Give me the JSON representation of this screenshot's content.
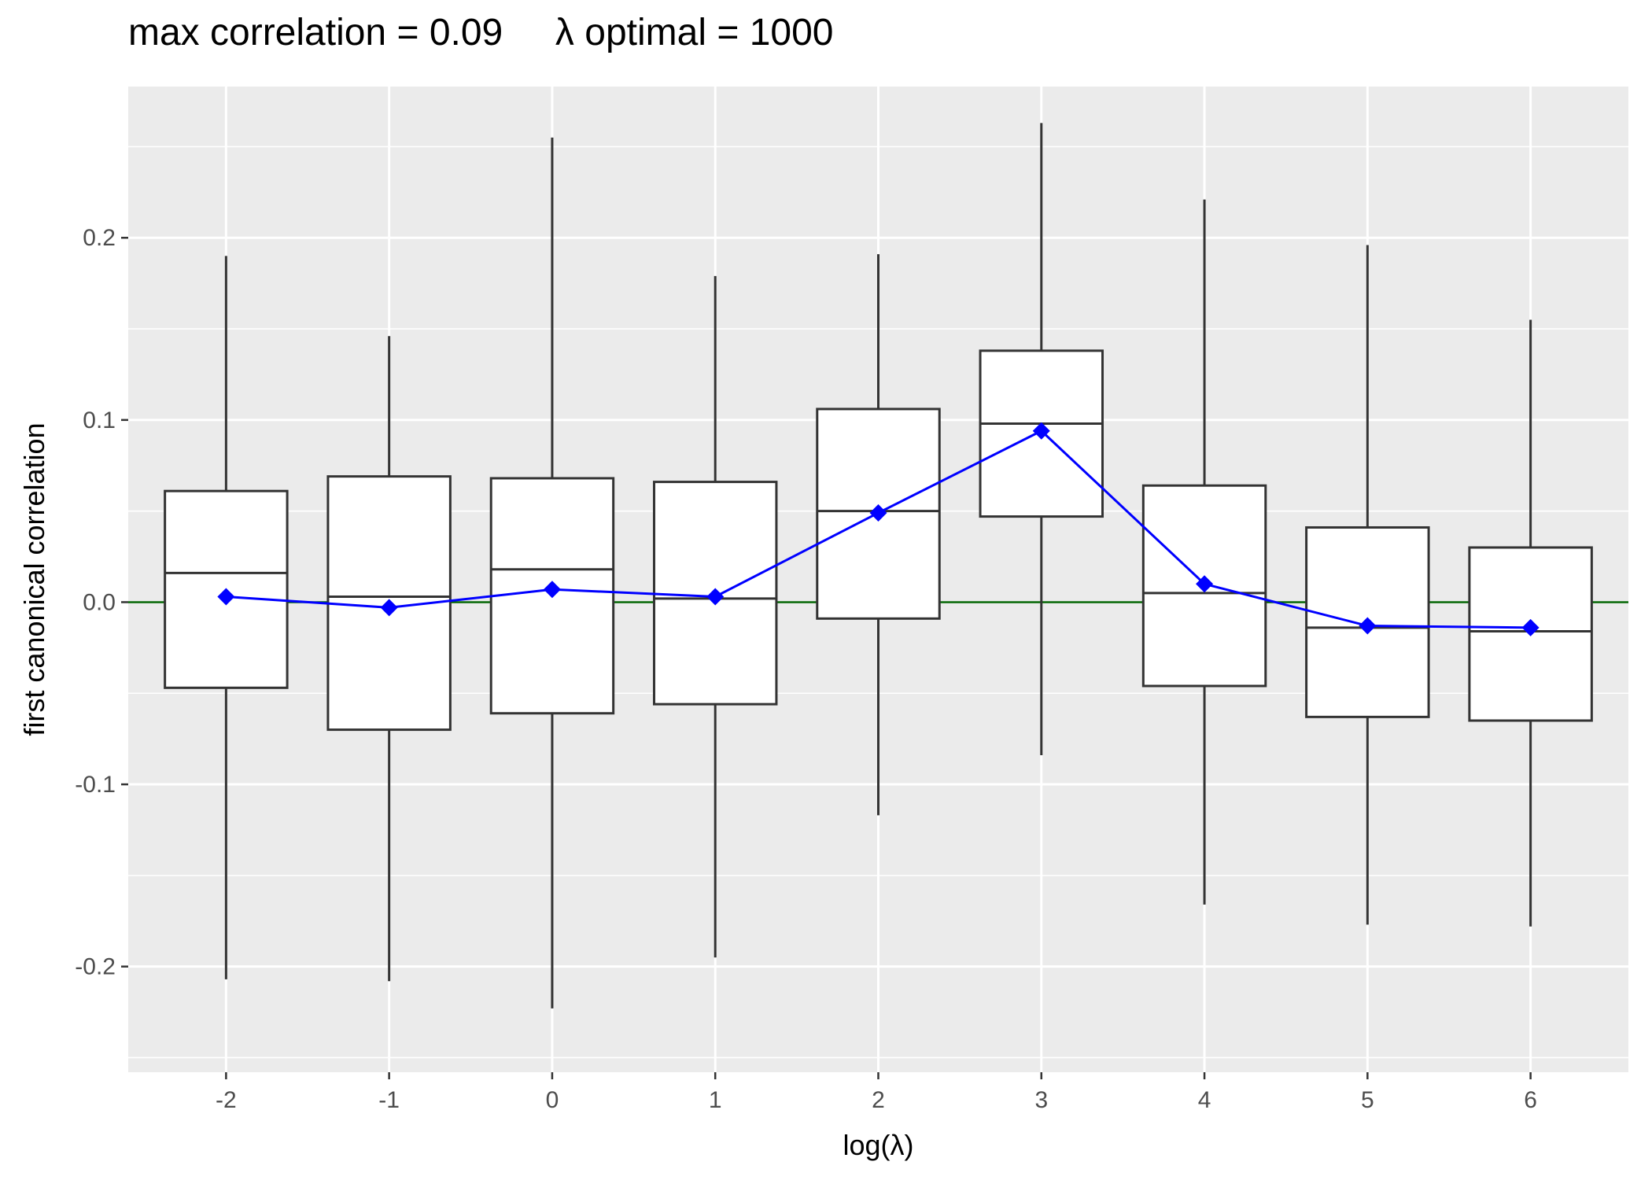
{
  "chart_data": {
    "type": "box",
    "title": "max correlation = 0.09     λ optimal = 1000",
    "xlabel": "log(λ)",
    "ylabel": "first canonical correlation",
    "x_range": [
      -2.6,
      6.6
    ],
    "ylim": [
      -0.258,
      0.283
    ],
    "y_ticks": [
      -0.2,
      -0.1,
      0.0,
      0.1,
      0.2
    ],
    "y_tick_labels": [
      "-0.2",
      "-0.1",
      "0.0",
      "0.1",
      "0.2"
    ],
    "x_ticks": [
      -2,
      -1,
      0,
      1,
      2,
      3,
      4,
      5,
      6
    ],
    "x_tick_labels": [
      "-2",
      "-1",
      "0",
      "1",
      "2",
      "3",
      "4",
      "5",
      "6"
    ],
    "grid": true,
    "reference_line": {
      "y": 0.0,
      "color": "#006400"
    },
    "boxes": [
      {
        "x": -2,
        "min": -0.207,
        "q1": -0.047,
        "median": 0.016,
        "q3": 0.061,
        "max": 0.19
      },
      {
        "x": -1,
        "min": -0.208,
        "q1": -0.07,
        "median": 0.003,
        "q3": 0.069,
        "max": 0.146
      },
      {
        "x": 0,
        "min": -0.223,
        "q1": -0.061,
        "median": 0.018,
        "q3": 0.068,
        "max": 0.255
      },
      {
        "x": 1,
        "min": -0.195,
        "q1": -0.056,
        "median": 0.002,
        "q3": 0.066,
        "max": 0.179
      },
      {
        "x": 2,
        "min": -0.117,
        "q1": -0.009,
        "median": 0.05,
        "q3": 0.106,
        "max": 0.191
      },
      {
        "x": 3,
        "min": -0.084,
        "q1": 0.047,
        "median": 0.098,
        "q3": 0.138,
        "max": 0.263
      },
      {
        "x": 4,
        "min": -0.166,
        "q1": -0.046,
        "median": 0.005,
        "q3": 0.064,
        "max": 0.221
      },
      {
        "x": 5,
        "min": -0.177,
        "q1": -0.063,
        "median": -0.014,
        "q3": 0.041,
        "max": 0.196
      },
      {
        "x": 6,
        "min": -0.178,
        "q1": -0.065,
        "median": -0.016,
        "q3": 0.03,
        "max": 0.155
      }
    ],
    "mean_series": {
      "color": "#0000ff",
      "x": [
        -2,
        -1,
        0,
        1,
        2,
        3,
        4,
        5,
        6
      ],
      "y": [
        0.003,
        -0.003,
        0.007,
        0.003,
        0.049,
        0.094,
        0.01,
        -0.013,
        -0.014
      ]
    },
    "colors": {
      "panel_background": "#ebebeb",
      "grid": "#ffffff",
      "box_fill": "#ffffff",
      "box_stroke": "#333333"
    }
  }
}
